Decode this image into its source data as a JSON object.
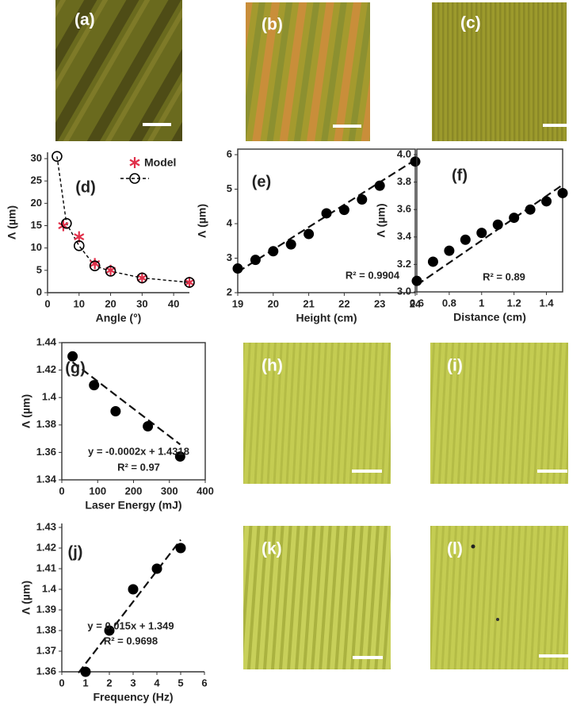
{
  "images": [
    {
      "label": "(a)"
    },
    {
      "label": "(b)"
    },
    {
      "label": "(c)"
    },
    {
      "label": "(h)"
    },
    {
      "label": "(i)"
    },
    {
      "label": "(k)"
    },
    {
      "label": "(l)"
    }
  ],
  "chart_data": [
    {
      "type": "scatter",
      "panel": "(d)",
      "xlabel": "Angle (°)",
      "ylabel": "Λ (µm)",
      "frame": "axes",
      "xlim": [
        0,
        45
      ],
      "ylim": [
        0,
        30
      ],
      "xticks": [
        0,
        10,
        20,
        30,
        40
      ],
      "yticks": [
        0,
        5,
        10,
        15,
        20,
        25,
        30
      ],
      "legend": "upper right",
      "series": [
        {
          "name": "Model",
          "color": "#e0304a",
          "marker": "asterisk",
          "x": [
            5,
            10,
            15,
            20,
            30,
            45
          ],
          "values": [
            15,
            12.5,
            6.5,
            5,
            3.3,
            2.3
          ]
        },
        {
          "color": "#000000",
          "marker": "circle-open",
          "line": "dashed",
          "x": [
            3,
            6,
            10,
            15,
            20,
            30,
            45
          ],
          "values": [
            30.5,
            15.5,
            10.5,
            6,
            4.8,
            3.3,
            2.3
          ]
        }
      ]
    },
    {
      "type": "scatter",
      "panel": "(e)",
      "xlabel": "Height (cm)",
      "ylabel": "Λ (µm)",
      "frame": "box",
      "xlim": [
        19,
        24
      ],
      "ylim": [
        2,
        6
      ],
      "xticks": [
        19,
        20,
        21,
        22,
        23,
        24
      ],
      "yticks": [
        2,
        3,
        4,
        5,
        6
      ],
      "annotations": [
        "R² = 0.9904"
      ],
      "series": [
        {
          "color": "#000000",
          "marker": "circle-filled",
          "x": [
            19,
            19.5,
            20,
            20.5,
            21,
            21.5,
            22,
            22.5,
            23,
            24
          ],
          "values": [
            2.7,
            2.95,
            3.2,
            3.4,
            3.7,
            4.3,
            4.4,
            4.7,
            5.1,
            5.8
          ]
        }
      ],
      "trendline": {
        "x": [
          19,
          24
        ],
        "y": [
          2.6,
          5.85
        ]
      }
    },
    {
      "type": "scatter",
      "panel": "(f)",
      "xlabel": "Distance (cm)",
      "ylabel": "Λ (µm)",
      "frame": "box",
      "xlim": [
        0.6,
        1.5
      ],
      "ylim": [
        3,
        4
      ],
      "xticks": [
        0.6,
        0.8,
        1,
        1.2,
        1.4
      ],
      "yticks": [
        {
          "value": 3,
          "label": "3.0"
        },
        3.2,
        3.4,
        3.6,
        3.8,
        {
          "value": 4,
          "label": "4.0"
        }
      ],
      "annotations": [
        "R² = 0.89"
      ],
      "series": [
        {
          "color": "#000000",
          "marker": "circle-filled",
          "x": [
            0.6,
            0.7,
            0.8,
            0.9,
            1,
            1.1,
            1.2,
            1.3,
            1.4,
            1.5
          ],
          "values": [
            3.08,
            3.22,
            3.3,
            3.38,
            3.43,
            3.49,
            3.54,
            3.6,
            3.66,
            3.72
          ]
        }
      ],
      "trendline": {
        "x": [
          0.6,
          1.5
        ],
        "y": [
          3.05,
          3.78
        ]
      }
    },
    {
      "type": "scatter",
      "panel": "(g)",
      "xlabel": "Laser Energy (mJ)",
      "ylabel": "Λ (µm)",
      "frame": "box",
      "xlim": [
        0,
        400
      ],
      "ylim": [
        1.34,
        1.44
      ],
      "xticks": [
        0,
        100,
        200,
        300,
        400
      ],
      "yticks": [
        1.34,
        1.36,
        1.38,
        1.4,
        1.42,
        1.44
      ],
      "annotations": [
        "y = -0.0002x + 1.4318",
        "R² = 0.97"
      ],
      "series": [
        {
          "color": "#000000",
          "marker": "circle-filled",
          "x": [
            30,
            90,
            150,
            240,
            330
          ],
          "values": [
            1.43,
            1.409,
            1.39,
            1.379,
            1.357
          ]
        }
      ],
      "trendline": {
        "x": [
          30,
          330
        ],
        "y": [
          1.4258,
          1.3658
        ]
      }
    },
    {
      "type": "scatter",
      "panel": "(j)",
      "xlabel": "Frequency (Hz)",
      "ylabel": "Λ (µm)",
      "frame": "axes",
      "xlim": [
        0,
        6
      ],
      "ylim": [
        1.36,
        1.43
      ],
      "xticks": [
        0,
        1,
        2,
        3,
        4,
        5,
        6
      ],
      "yticks": [
        1.36,
        1.37,
        1.38,
        1.39,
        1.4,
        1.41,
        1.42,
        1.43
      ],
      "annotations": [
        "y = 0.015x + 1.349",
        "R² = 0.9698"
      ],
      "series": [
        {
          "color": "#000000",
          "marker": "circle-filled",
          "x": [
            1,
            2,
            3,
            4,
            5
          ],
          "values": [
            1.36,
            1.38,
            1.4,
            1.41,
            1.42
          ]
        }
      ],
      "trendline": {
        "x": [
          0.7,
          5
        ],
        "y": [
          1.3595,
          1.424
        ]
      }
    }
  ]
}
